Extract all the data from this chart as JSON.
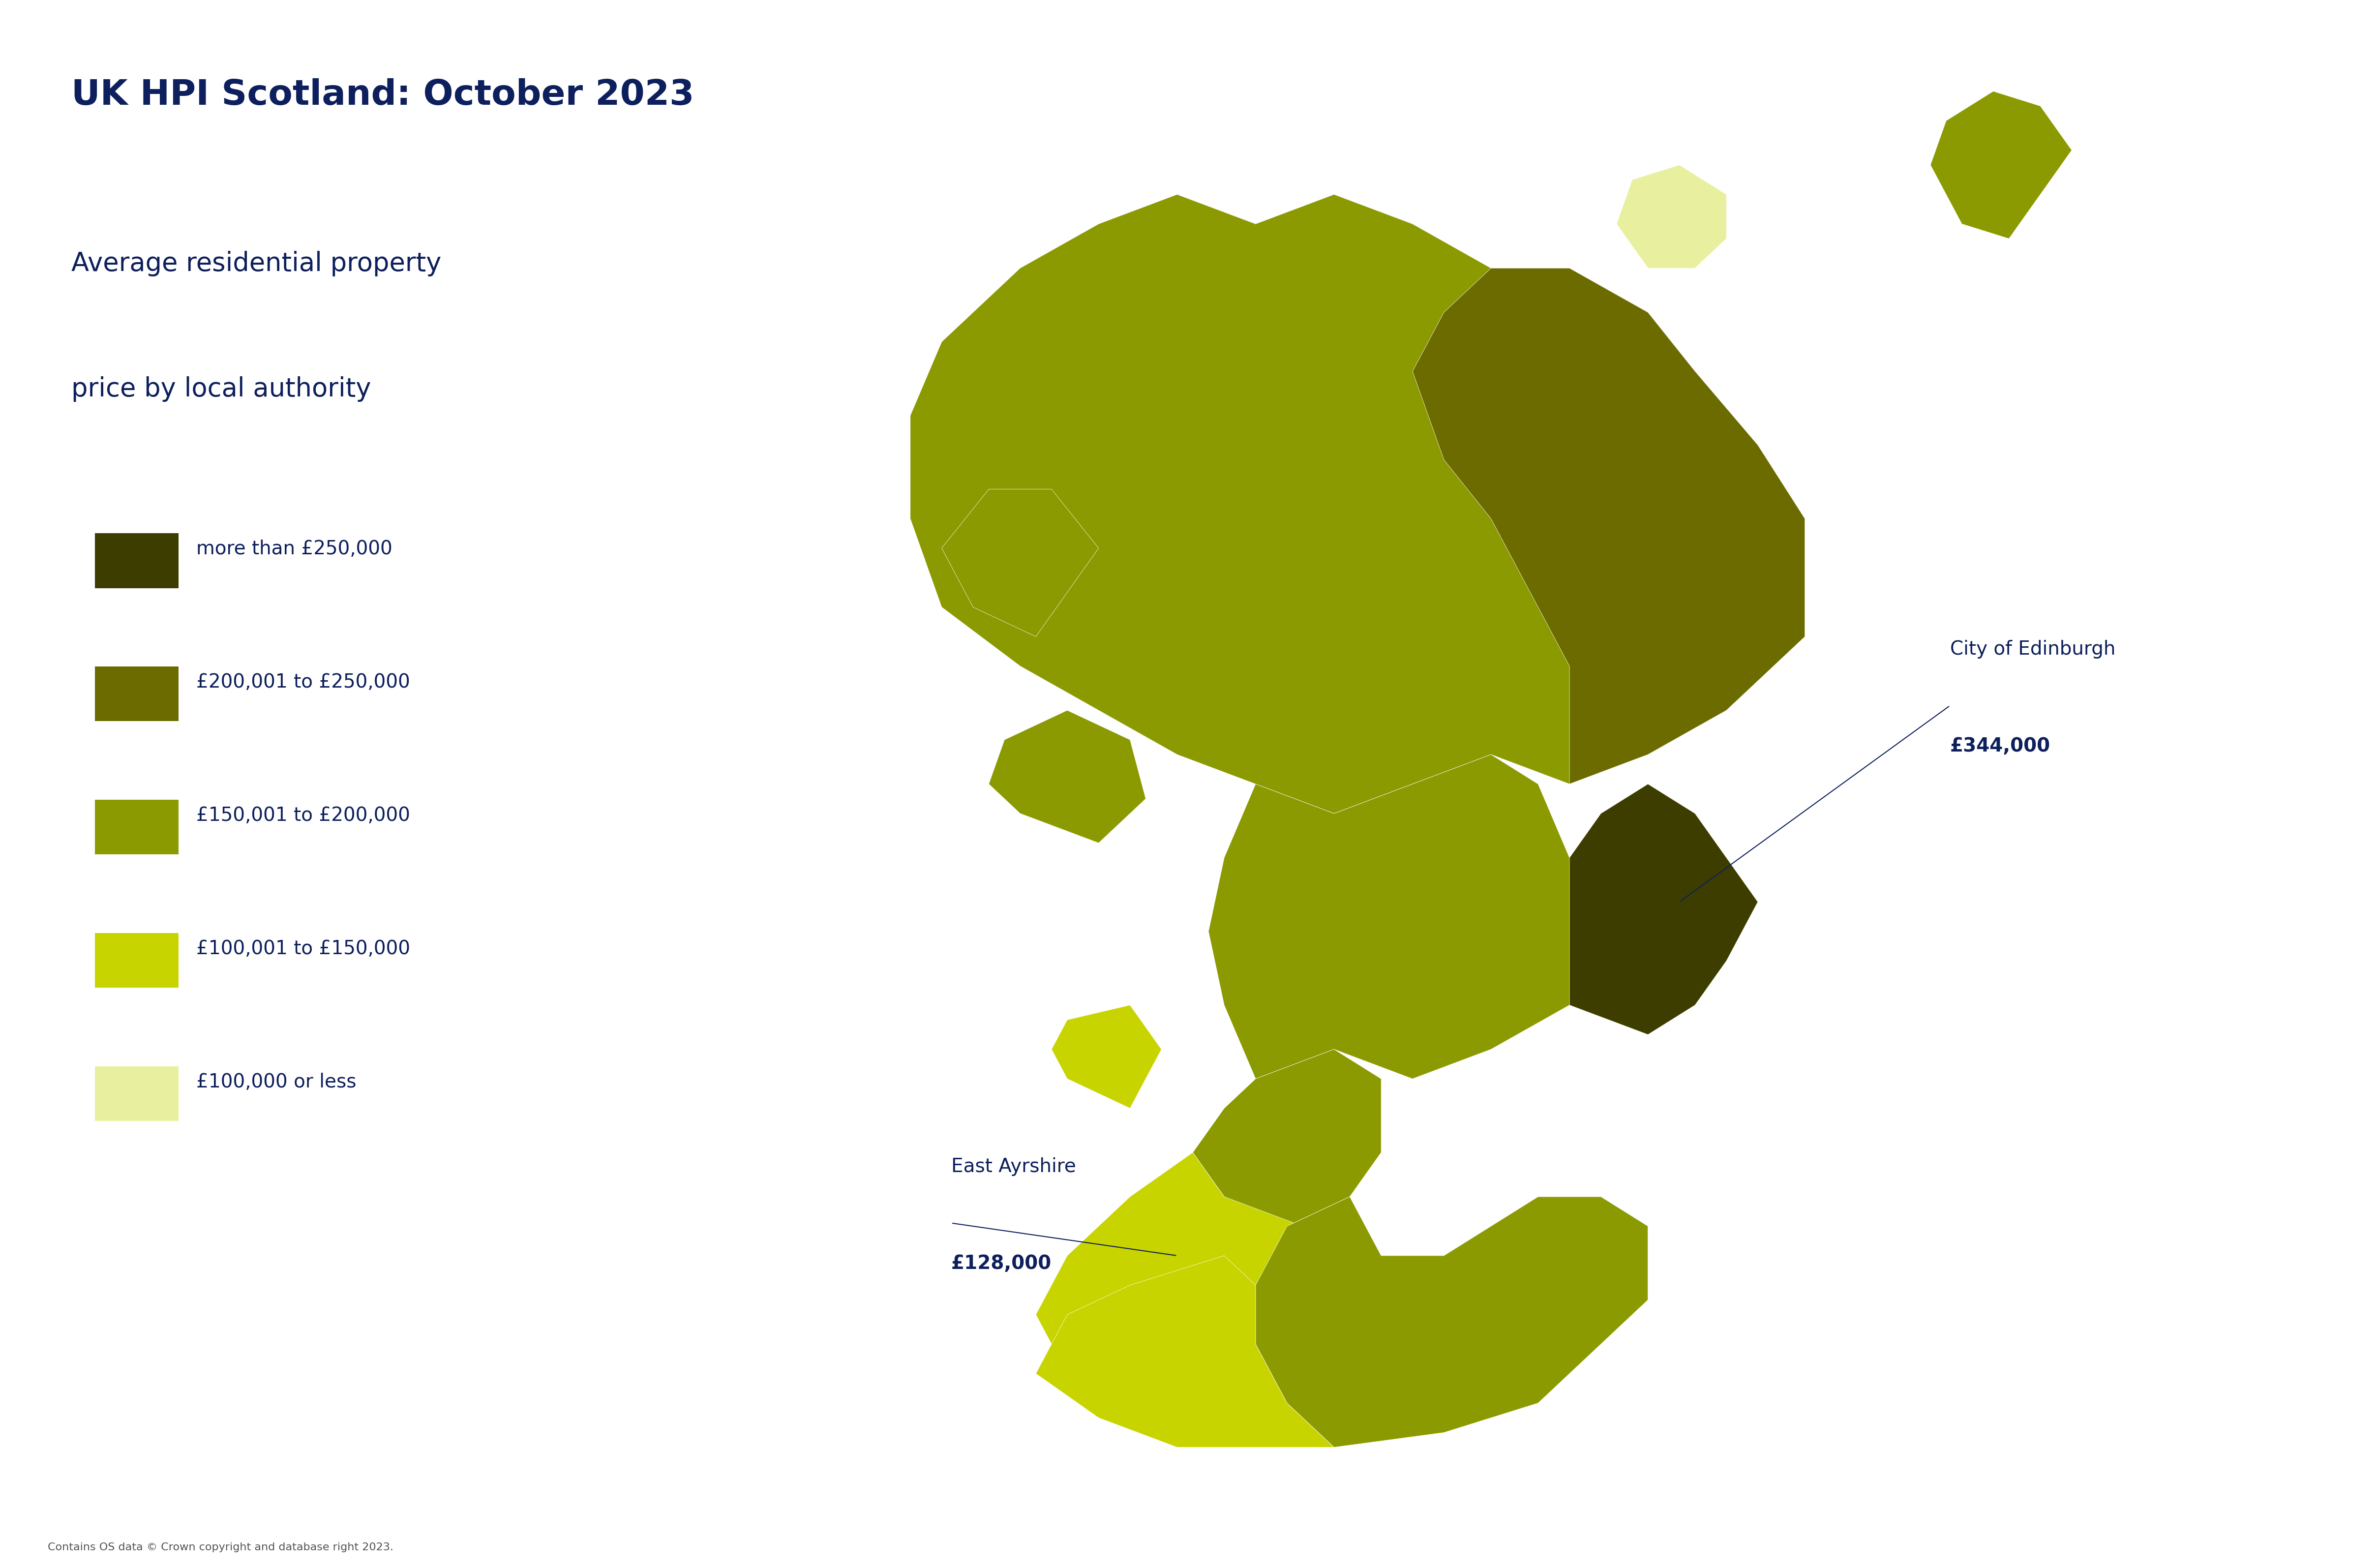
{
  "title": "UK HPI Scotland: October 2023",
  "subtitle_line1": "Average residential property",
  "subtitle_line2": "price by local authority",
  "background_color": "#ffffff",
  "title_color": "#0d1f5c",
  "subtitle_color": "#0d1f5c",
  "legend_colors": [
    "#3d3d00",
    "#6b6b00",
    "#8b9a00",
    "#c8d400",
    "#e8f0a0"
  ],
  "legend_labels": [
    "more than £250,000",
    "£200,001 to £250,000",
    "£150,001 to £200,000",
    "£100,001 to £150,000",
    "£100,000 or less"
  ],
  "annotation_edinburgh_label": "City of Edinburgh",
  "annotation_edinburgh_value": "£344,000",
  "annotation_ayrshire_label": "East Ayrshire",
  "annotation_ayrshire_value": "£128,000",
  "copyright_text": "Contains OS data © Crown copyright and database right 2023.",
  "title_fontsize": 52,
  "subtitle_fontsize": 38,
  "legend_fontsize": 28,
  "annotation_fontsize": 28,
  "copyright_fontsize": 16
}
